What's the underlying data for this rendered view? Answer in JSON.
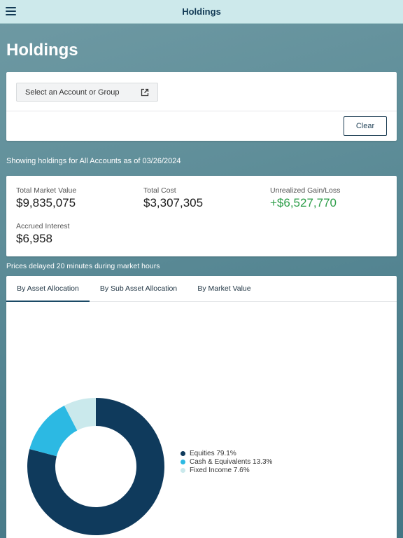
{
  "header": {
    "title": "Holdings",
    "menu_icon": "hamburger-menu-icon"
  },
  "page": {
    "title": "Holdings"
  },
  "selector": {
    "account_button_label": "Select an Account or Group",
    "account_button_icon": "external-link-icon",
    "clear_label": "Clear"
  },
  "showing_text": "Showing holdings for All Accounts as of 03/26/2024",
  "summary": {
    "total_market_value_label": "Total Market Value",
    "total_market_value": "$9,835,075",
    "total_cost_label": "Total Cost",
    "total_cost": "$3,307,305",
    "unrealized_label": "Unrealized Gain/Loss",
    "unrealized": "+$6,527,770",
    "accrued_label": "Accrued Interest",
    "accrued": "$6,958"
  },
  "delayed_text": "Prices delayed 20 minutes during market hours",
  "tabs": [
    {
      "label": "By Asset Allocation",
      "active": true
    },
    {
      "label": "By Sub Asset Allocation",
      "active": false
    },
    {
      "label": "By Market Value",
      "active": false
    }
  ],
  "colors": {
    "gain": "#2e9e4a",
    "navy": "#0f3a5c",
    "header_bg": "#cde9eb"
  },
  "allocation": {
    "slices": [
      {
        "name": "Equities",
        "pct": 79.1,
        "color": "#0f3a5c",
        "legend": "Equities 79.1%"
      },
      {
        "name": "Cash & Equivalents",
        "pct": 13.3,
        "color": "#2cb9e3",
        "legend": "Cash & Equivalents 13.3%"
      },
      {
        "name": "Fixed Income",
        "pct": 7.6,
        "color": "#cae9ec",
        "legend": "Fixed Income 7.6%"
      }
    ]
  }
}
